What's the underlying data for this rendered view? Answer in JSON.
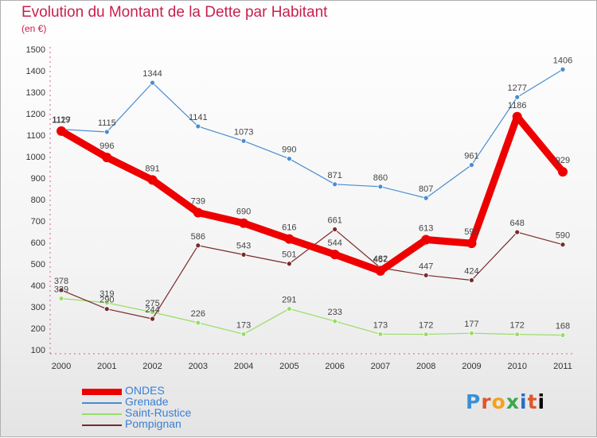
{
  "title": "Evolution du Montant de la Dette par Habitant",
  "subtitle": "(en €)",
  "logo_text": "Proxiti",
  "chart_data": {
    "type": "line",
    "title": "Evolution du Montant de la Dette par Habitant",
    "ylabel": "(en €)",
    "xlabel": "",
    "categories": [
      "2000",
      "2001",
      "2002",
      "2003",
      "2004",
      "2005",
      "2006",
      "2007",
      "2008",
      "2009",
      "2010",
      "2011"
    ],
    "y_ticks": [
      100,
      200,
      300,
      400,
      500,
      600,
      700,
      800,
      900,
      1000,
      1100,
      1200,
      1300,
      1400,
      1500
    ],
    "ylim": [
      100,
      1500
    ],
    "grid": false,
    "legend_position": "bottom-left",
    "series": [
      {
        "name": "ONDES",
        "color": "#ee0000",
        "values": [
          1119,
          996,
          891,
          739,
          690,
          616,
          544,
          467,
          613,
          596,
          1186,
          929
        ]
      },
      {
        "name": "Grenade",
        "color": "#4a8cd0",
        "values": [
          1127,
          1115,
          1344,
          1141,
          1073,
          990,
          871,
          860,
          807,
          961,
          1277,
          1406
        ]
      },
      {
        "name": "Saint-Rustice",
        "color": "#99dd66",
        "values": [
          339,
          319,
          275,
          226,
          173,
          291,
          233,
          173,
          172,
          177,
          172,
          168
        ]
      },
      {
        "name": "Pompignan",
        "color": "#7a2a2a",
        "values": [
          378,
          290,
          244,
          586,
          543,
          501,
          661,
          482,
          447,
          424,
          648,
          590
        ]
      }
    ]
  }
}
